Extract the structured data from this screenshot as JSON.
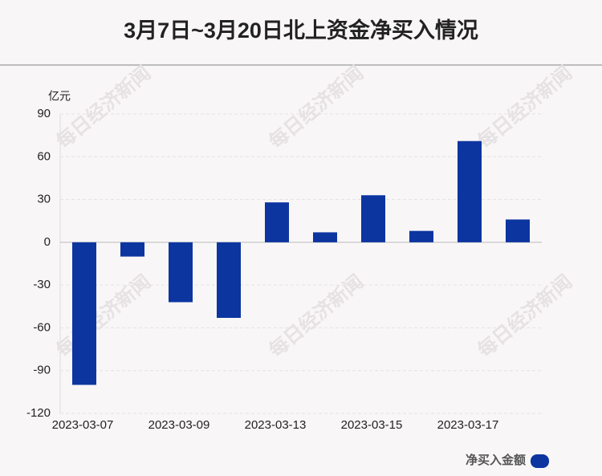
{
  "chart_data": {
    "type": "bar",
    "title": "3月7日~3月20日北上资金净买入情况",
    "y_label": "亿元",
    "categories": [
      "2023-03-07",
      null,
      "2023-03-09",
      null,
      "2023-03-13",
      null,
      "2023-03-15",
      null,
      "2023-03-17",
      null
    ],
    "series": [
      {
        "name": "净买入金额",
        "color": "#0c35a0",
        "values": [
          -100,
          -10,
          -42,
          -53,
          28,
          7,
          33,
          8,
          71,
          16
        ]
      }
    ],
    "ylim": [
      -120,
      90
    ],
    "yticks": [
      -120,
      -90,
      -60,
      -30,
      0,
      30,
      60,
      90
    ],
    "grid": true
  },
  "watermark": "每日经济新闻"
}
